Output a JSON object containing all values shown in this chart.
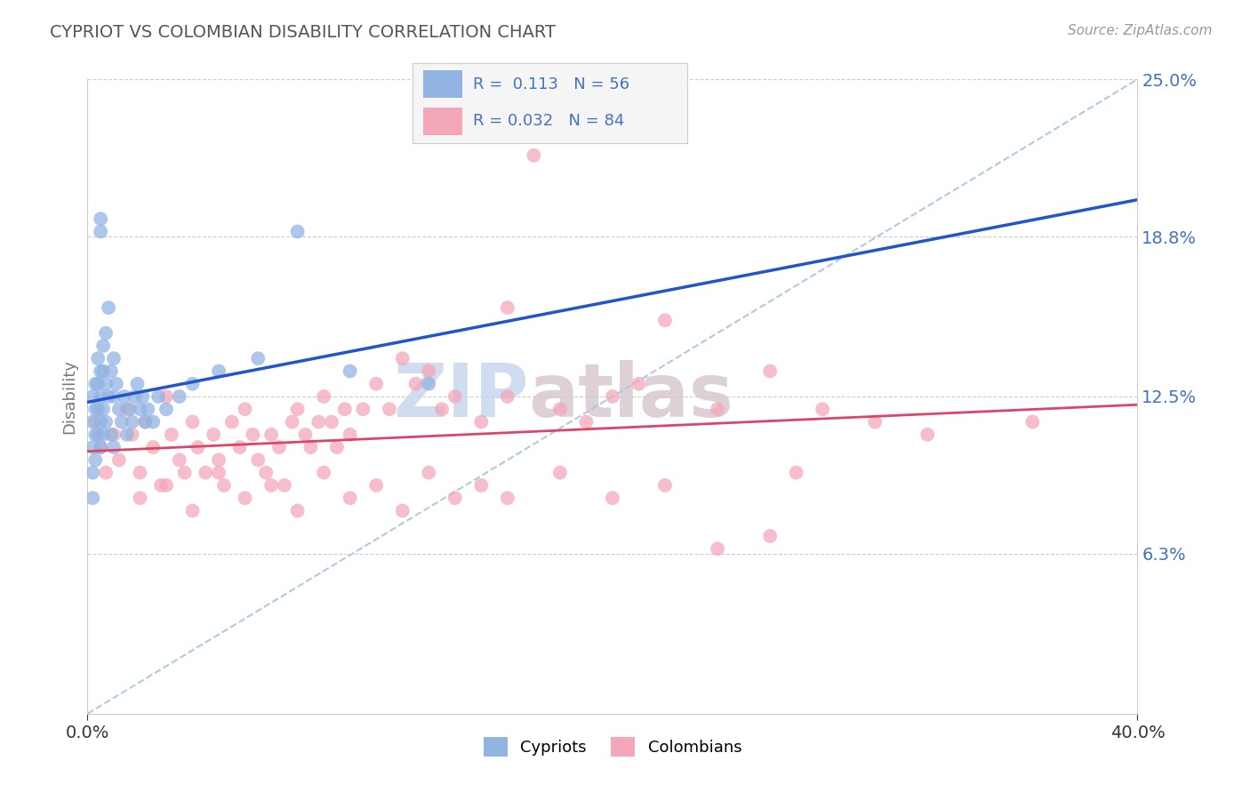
{
  "title": "CYPRIOT VS COLOMBIAN DISABILITY CORRELATION CHART",
  "source": "Source: ZipAtlas.com",
  "ylabel": "Disability",
  "xlim": [
    0.0,
    40.0
  ],
  "ylim": [
    0.0,
    25.0
  ],
  "yticks": [
    6.3,
    12.5,
    18.8,
    25.0
  ],
  "ytick_labels": [
    "6.3%",
    "12.5%",
    "18.8%",
    "25.0%"
  ],
  "xtick_labels": [
    "0.0%",
    "40.0%"
  ],
  "cypriot_color": "#92b4e3",
  "colombian_color": "#f4a7b9",
  "cypriot_line_color": "#2255cc",
  "colombian_line_color": "#dd4466",
  "dashed_line_color": "#a8c4e0",
  "cypriot_R": 0.113,
  "cypriot_N": 56,
  "colombian_R": 0.032,
  "colombian_N": 84,
  "legend_label_1": "Cypriots",
  "legend_label_2": "Colombians",
  "watermark_zip": "ZIP",
  "watermark_atlas": "atlas",
  "bg_color": "#ffffff",
  "grid_color": "#cccccc",
  "title_color": "#555555",
  "axis_label_color": "#777777",
  "tick_color": "#4472c4",
  "cypriot_x": [
    0.2,
    0.2,
    0.2,
    0.2,
    0.2,
    0.3,
    0.3,
    0.3,
    0.3,
    0.4,
    0.4,
    0.4,
    0.4,
    0.5,
    0.5,
    0.5,
    0.5,
    0.5,
    0.5,
    0.6,
    0.6,
    0.6,
    0.6,
    0.7,
    0.7,
    0.7,
    0.8,
    0.8,
    0.9,
    0.9,
    1.0,
    1.0,
    1.0,
    1.1,
    1.2,
    1.3,
    1.4,
    1.5,
    1.6,
    1.7,
    1.8,
    1.9,
    2.0,
    2.1,
    2.2,
    2.3,
    2.5,
    2.7,
    3.0,
    3.5,
    4.0,
    5.0,
    6.5,
    8.0,
    10.0,
    13.0
  ],
  "cypriot_y": [
    12.5,
    11.5,
    10.5,
    9.5,
    8.5,
    13.0,
    12.0,
    11.0,
    10.0,
    14.0,
    13.0,
    12.0,
    11.0,
    19.5,
    19.0,
    13.5,
    12.5,
    11.5,
    10.5,
    14.5,
    13.5,
    12.0,
    11.0,
    15.0,
    13.0,
    11.5,
    16.0,
    12.5,
    13.5,
    11.0,
    14.0,
    12.5,
    10.5,
    13.0,
    12.0,
    11.5,
    12.5,
    11.0,
    12.0,
    11.5,
    12.5,
    13.0,
    12.0,
    12.5,
    11.5,
    12.0,
    11.5,
    12.5,
    12.0,
    12.5,
    13.0,
    13.5,
    14.0,
    19.0,
    13.5,
    13.0
  ],
  "colombian_x": [
    0.3,
    0.5,
    0.7,
    1.0,
    1.2,
    1.5,
    1.7,
    2.0,
    2.2,
    2.5,
    2.8,
    3.0,
    3.2,
    3.5,
    3.7,
    4.0,
    4.2,
    4.5,
    4.8,
    5.0,
    5.2,
    5.5,
    5.8,
    6.0,
    6.3,
    6.5,
    6.8,
    7.0,
    7.3,
    7.5,
    7.8,
    8.0,
    8.3,
    8.5,
    8.8,
    9.0,
    9.3,
    9.5,
    9.8,
    10.0,
    10.5,
    11.0,
    11.5,
    12.0,
    12.5,
    13.0,
    13.5,
    14.0,
    15.0,
    16.0,
    17.0,
    18.0,
    19.0,
    20.0,
    21.0,
    22.0,
    24.0,
    26.0,
    28.0,
    30.0,
    2.0,
    3.0,
    4.0,
    5.0,
    6.0,
    7.0,
    8.0,
    9.0,
    10.0,
    11.0,
    12.0,
    13.0,
    14.0,
    15.0,
    16.0,
    18.0,
    20.0,
    22.0,
    24.0,
    26.0,
    16.0,
    27.0,
    32.0,
    36.0
  ],
  "colombian_y": [
    11.5,
    10.5,
    9.5,
    11.0,
    10.0,
    12.0,
    11.0,
    9.5,
    11.5,
    10.5,
    9.0,
    12.5,
    11.0,
    10.0,
    9.5,
    11.5,
    10.5,
    9.5,
    11.0,
    10.0,
    9.0,
    11.5,
    10.5,
    12.0,
    11.0,
    10.0,
    9.5,
    11.0,
    10.5,
    9.0,
    11.5,
    12.0,
    11.0,
    10.5,
    11.5,
    12.5,
    11.5,
    10.5,
    12.0,
    11.0,
    12.0,
    13.0,
    12.0,
    14.0,
    13.0,
    13.5,
    12.0,
    12.5,
    11.5,
    12.5,
    22.0,
    12.0,
    11.5,
    12.5,
    13.0,
    15.5,
    12.0,
    13.5,
    12.0,
    11.5,
    8.5,
    9.0,
    8.0,
    9.5,
    8.5,
    9.0,
    8.0,
    9.5,
    8.5,
    9.0,
    8.0,
    9.5,
    8.5,
    9.0,
    8.5,
    9.5,
    8.5,
    9.0,
    6.5,
    7.0,
    16.0,
    9.5,
    11.0,
    11.5
  ]
}
